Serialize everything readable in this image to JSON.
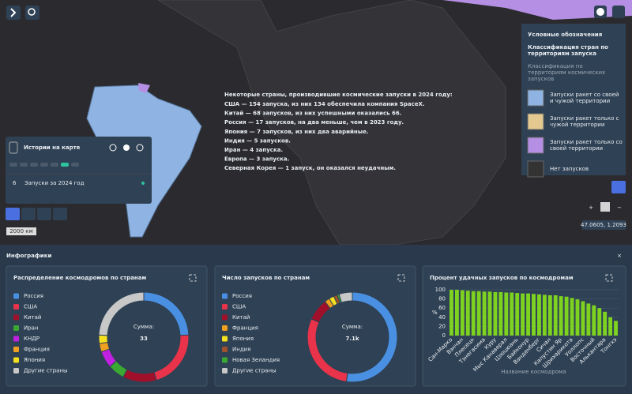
{
  "overlay_text": {
    "title": "Некоторые страны, производившие космические запуски в 2024 году:",
    "lines": [
      "США — 154 запуска, из них 134 обеспечила компания SpaceX.",
      "Китай — 68 запусков, из них успешными оказались 66.",
      "Россия — 17 запусков, на два меньше, чем в 2023 году.",
      "Япония — 7 запусков, из них два аварийные.",
      "Индия — 5 запусков.",
      "Иран — 4 запуска.",
      "Европа — 3 запуска.",
      "Северная Корея — 1 запуск, он оказался неудачным."
    ]
  },
  "legend": {
    "title": "Условные обозначения",
    "subtitle": "Классификация стран по территориям запуска",
    "caption": "Классификация по территориям космических запусков",
    "items": [
      {
        "label": "Запуски ракет со своей и чужой территории",
        "color": "#8fb4e3"
      },
      {
        "label": "Запуски ракет только с чужой территории",
        "color": "#e3c98f"
      },
      {
        "label": "Запуски ракет только со своей территории",
        "color": "#b48fe3"
      },
      {
        "label": "Нет запусков",
        "color": "#333333"
      }
    ]
  },
  "stories": {
    "title": "Истории на карте",
    "item_number": "6",
    "item": "Запуски за 2024 год"
  },
  "scale": "2000 км",
  "coords": "47.0605, 1.2093",
  "panel_title": "Инфографики",
  "charts": [
    {
      "type": "donut",
      "title": "Распределение космодромов по странам",
      "center_label": "Сумма:",
      "center_value": "33",
      "categories": [
        "Россия",
        "США",
        "Китай",
        "Иран",
        "КНДР",
        "Франция",
        "Япония",
        "Другие страны"
      ],
      "colors": [
        "#4a90e2",
        "#e8334a",
        "#a0102a",
        "#3aa832",
        "#c020e0",
        "#f0a020",
        "#f5e020",
        "#c8c8c8"
      ],
      "values": [
        8,
        7,
        4,
        2,
        2,
        1,
        1,
        8
      ]
    },
    {
      "type": "donut",
      "title": "Число запусков по странам",
      "center_label": "Сумма:",
      "center_value": "7.1k",
      "categories": [
        "Россия",
        "США",
        "Китай",
        "Франция",
        "Япония",
        "Индия",
        "Новая Зеландия",
        "Другие страны"
      ],
      "colors": [
        "#4a90e2",
        "#e8334a",
        "#a0102a",
        "#f0a020",
        "#f5e020",
        "#a0522d",
        "#3aa832",
        "#c8c8c8"
      ],
      "values": [
        3700,
        2100,
        560,
        130,
        130,
        90,
        50,
        340
      ]
    },
    {
      "type": "bar",
      "title": "Процент удачных запусков по космодромам",
      "ylabel": "%",
      "xlabel": "Название космодрома",
      "color": "#7ed321",
      "ylim": [
        0,
        100
      ],
      "yticks": [
        0,
        20,
        40,
        60,
        80,
        100
      ],
      "grid": true,
      "categories": [
        "Сан-Марко",
        null,
        "Вэнчан",
        null,
        "Плесецк",
        null,
        "Тэнегасима",
        null,
        "Куру",
        null,
        "Мыс Канаверал",
        null,
        "Цзюцюань",
        null,
        "Байконур",
        null,
        "Ванденберг",
        null,
        "Сичан",
        null,
        "Капустин Яр",
        null,
        "Шрихарикота",
        null,
        "Уоллопс",
        null,
        "Восточный",
        null,
        "Алькантара",
        null,
        "Тонгхэ"
      ],
      "values": [
        100,
        100,
        99,
        98,
        97,
        97,
        96,
        96,
        95,
        95,
        94,
        94,
        93,
        92,
        92,
        91,
        90,
        89,
        88,
        88,
        86,
        85,
        82,
        79,
        75,
        70,
        66,
        60,
        52,
        40,
        32
      ]
    }
  ]
}
